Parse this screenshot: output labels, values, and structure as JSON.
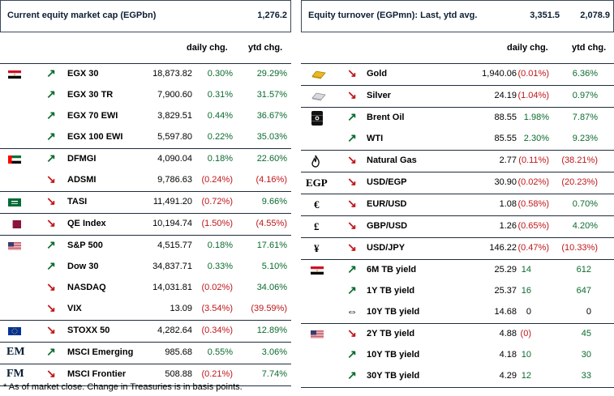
{
  "left": {
    "title": "Current equity market cap (EGPbn)",
    "title_value": "1,276.2",
    "headers": {
      "daily": "daily chg.",
      "ytd": "ytd chg."
    },
    "groups": [
      {
        "flag": "egypt-flag",
        "rows": [
          {
            "dir": "up",
            "name": "EGX 30",
            "value": "18,873.82",
            "daily": "0.30%",
            "daily_sign": "pos",
            "ytd": "29.29%",
            "ytd_sign": "pos"
          },
          {
            "dir": "up",
            "name": "EGX 30 TR",
            "value": "7,900.60",
            "daily": "0.31%",
            "daily_sign": "pos",
            "ytd": "31.57%",
            "ytd_sign": "pos"
          },
          {
            "dir": "up",
            "name": "EGX 70 EWI",
            "value": "3,829.51",
            "daily": "0.44%",
            "daily_sign": "pos",
            "ytd": "36.67%",
            "ytd_sign": "pos"
          },
          {
            "dir": "up",
            "name": "EGX 100 EWI",
            "value": "5,597.80",
            "daily": "0.22%",
            "daily_sign": "pos",
            "ytd": "35.03%",
            "ytd_sign": "pos"
          }
        ]
      },
      {
        "flag": "uae-flag",
        "rows": [
          {
            "dir": "up",
            "name": "DFMGI",
            "value": "4,090.04",
            "daily": "0.18%",
            "daily_sign": "pos",
            "ytd": "22.60%",
            "ytd_sign": "pos"
          },
          {
            "dir": "down",
            "name": "ADSMI",
            "value": "9,786.63",
            "daily": "(0.24%)",
            "daily_sign": "neg",
            "ytd": "(4.16%)",
            "ytd_sign": "neg"
          }
        ]
      },
      {
        "flag": "saudi-flag",
        "rows": [
          {
            "dir": "down",
            "name": "TASI",
            "value": "11,491.20",
            "daily": "(0.72%)",
            "daily_sign": "neg",
            "ytd": "9.66%",
            "ytd_sign": "pos"
          }
        ]
      },
      {
        "flag": "qatar-flag",
        "rows": [
          {
            "dir": "down",
            "name": "QE Index",
            "value": "10,194.74",
            "daily": "(1.50%)",
            "daily_sign": "neg",
            "ytd": "(4.55%)",
            "ytd_sign": "neg"
          }
        ]
      },
      {
        "flag": "us-flag",
        "rows": [
          {
            "dir": "up",
            "name": "S&P 500",
            "value": "4,515.77",
            "daily": "0.18%",
            "daily_sign": "pos",
            "ytd": "17.61%",
            "ytd_sign": "pos"
          },
          {
            "dir": "up",
            "name": "Dow 30",
            "value": "34,837.71",
            "daily": "0.33%",
            "daily_sign": "pos",
            "ytd": "5.10%",
            "ytd_sign": "pos"
          },
          {
            "dir": "down",
            "name": "NASDAQ",
            "value": "14,031.81",
            "daily": "(0.02%)",
            "daily_sign": "neg",
            "ytd": "34.06%",
            "ytd_sign": "pos"
          },
          {
            "dir": "down",
            "name": "VIX",
            "value": "13.09",
            "daily": "(3.54%)",
            "daily_sign": "neg",
            "ytd": "(39.59%)",
            "ytd_sign": "neg"
          }
        ]
      },
      {
        "flag": "eu-flag",
        "rows": [
          {
            "dir": "down",
            "name": "STOXX 50",
            "value": "4,282.64",
            "daily": "(0.34%)",
            "daily_sign": "neg",
            "ytd": "12.89%",
            "ytd_sign": "pos"
          }
        ]
      },
      {
        "badge": "EM",
        "rows": [
          {
            "dir": "up",
            "name": "MSCI Emerging",
            "value": "985.68",
            "daily": "0.55%",
            "daily_sign": "pos",
            "ytd": "3.06%",
            "ytd_sign": "pos"
          }
        ]
      },
      {
        "badge": "FM",
        "rows": [
          {
            "dir": "down",
            "name": "MSCI Frontier",
            "value": "508.88",
            "daily": "(0.21%)",
            "daily_sign": "neg",
            "ytd": "7.74%",
            "ytd_sign": "pos"
          }
        ]
      }
    ]
  },
  "right": {
    "title": "Equity turnover (EGPmn): Last, ytd avg.",
    "title_last": "3,351.5",
    "title_avg": "2,078.9",
    "headers": {
      "daily": "daily chg.",
      "ytd": "ytd chg."
    },
    "groups": [
      {
        "icon": "gold-bar-icon",
        "rows": [
          {
            "dir": "down",
            "name": "Gold",
            "value": "1,940.06",
            "daily": "(0.01%)",
            "daily_sign": "neg",
            "ytd": "6.36%",
            "ytd_sign": "pos"
          }
        ]
      },
      {
        "icon": "silver-bar-icon",
        "rows": [
          {
            "dir": "down",
            "name": "Silver",
            "value": "24.19",
            "daily": "(1.04%)",
            "daily_sign": "neg",
            "ytd": "0.97%",
            "ytd_sign": "pos"
          }
        ]
      },
      {
        "icon": "oil-barrel-icon",
        "rows": [
          {
            "dir": "up",
            "name": "Brent Oil",
            "value": "88.55",
            "daily": "1.98%",
            "daily_sign": "pos",
            "ytd": "7.87%",
            "ytd_sign": "pos"
          },
          {
            "dir": "up",
            "name": "WTI",
            "value": "85.55",
            "daily": "2.30%",
            "daily_sign": "pos",
            "ytd": "9.23%",
            "ytd_sign": "pos"
          }
        ]
      },
      {
        "icon": "flame-icon",
        "rows": [
          {
            "dir": "down",
            "name": "Natural Gas",
            "value": "2.77",
            "daily": "(0.11%)",
            "daily_sign": "neg",
            "ytd": "(38.21%)",
            "ytd_sign": "neg"
          }
        ]
      },
      {
        "cur": "EGP",
        "rows": [
          {
            "dir": "down",
            "name": "USD/EGP",
            "value": "30.90",
            "daily": "(0.02%)",
            "daily_sign": "neg",
            "ytd": "(20.23%)",
            "ytd_sign": "neg"
          }
        ]
      },
      {
        "cur": "€",
        "rows": [
          {
            "dir": "down",
            "name": "EUR/USD",
            "value": "1.08",
            "daily": "(0.58%)",
            "daily_sign": "neg",
            "ytd": "0.70%",
            "ytd_sign": "pos"
          }
        ]
      },
      {
        "cur": "£",
        "rows": [
          {
            "dir": "down",
            "name": "GBP/USD",
            "value": "1.26",
            "daily": "(0.65%)",
            "daily_sign": "neg",
            "ytd": "4.20%",
            "ytd_sign": "pos"
          }
        ]
      },
      {
        "cur": "¥",
        "rows": [
          {
            "dir": "down",
            "name": "USD/JPY",
            "value": "146.22",
            "daily": "(0.47%)",
            "daily_sign": "neg",
            "ytd": "(10.33%)",
            "ytd_sign": "neg"
          }
        ]
      },
      {
        "flag": "egypt-flag",
        "rows": [
          {
            "dir": "up",
            "name": "6M TB yield",
            "value": "25.29",
            "daily": "14",
            "daily_sign": "pos",
            "ytd": "612",
            "ytd_sign": "pos"
          },
          {
            "dir": "up",
            "name": "1Y TB yield",
            "value": "25.37",
            "daily": "16",
            "daily_sign": "pos",
            "ytd": "647",
            "ytd_sign": "pos"
          },
          {
            "dir": "flat",
            "name": "10Y TB yield",
            "value": "14.68",
            "daily": "0",
            "daily_sign": "neu",
            "ytd": "0",
            "ytd_sign": "neu"
          }
        ]
      },
      {
        "flag": "us-flag",
        "rows": [
          {
            "dir": "down",
            "name": "2Y TB yield",
            "value": "4.88",
            "daily": "(0)",
            "daily_sign": "neg",
            "ytd": "45",
            "ytd_sign": "pos"
          },
          {
            "dir": "up",
            "name": "10Y TB yield",
            "value": "4.18",
            "daily": "10",
            "daily_sign": "pos",
            "ytd": "30",
            "ytd_sign": "pos"
          },
          {
            "dir": "up",
            "name": "30Y TB yield",
            "value": "4.29",
            "daily": "12",
            "daily_sign": "pos",
            "ytd": "33",
            "ytd_sign": "pos"
          }
        ]
      }
    ]
  },
  "footnote": "* As of market close. Change in Treasuries is in basis points.",
  "colors": {
    "positive": "#0b6b2e",
    "negative": "#c0161a",
    "border": "#1f2d3d"
  }
}
